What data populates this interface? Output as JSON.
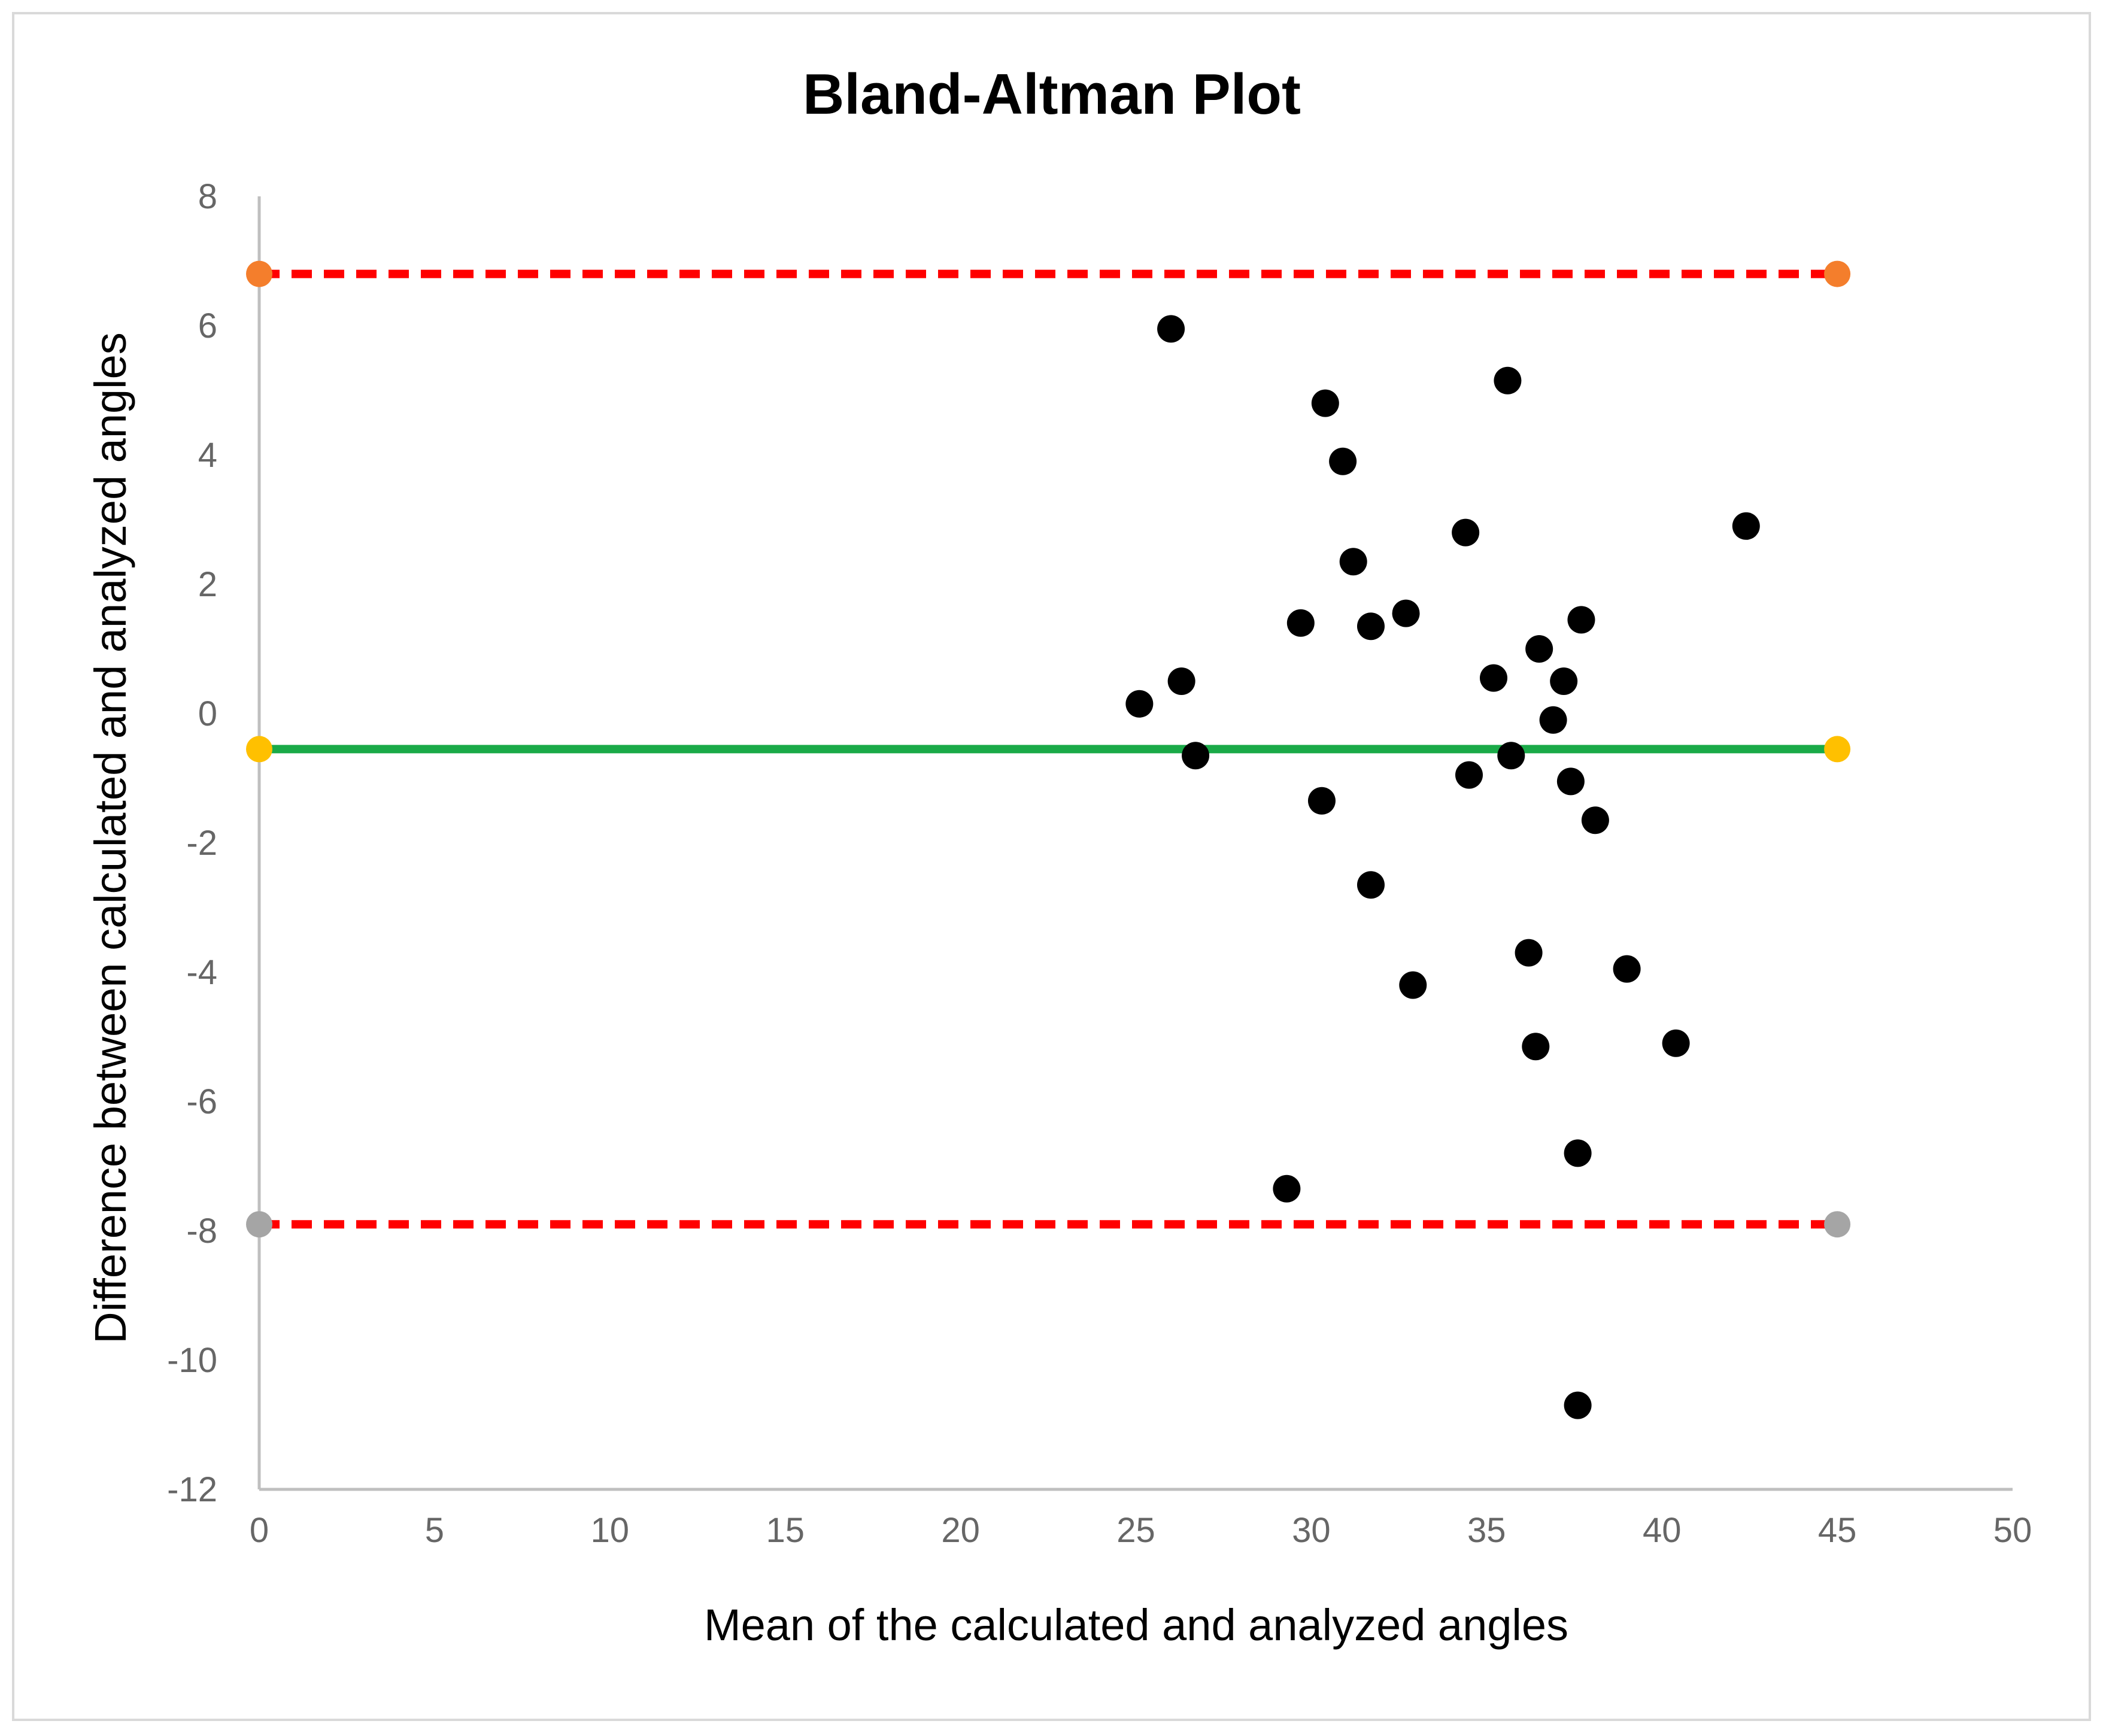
{
  "chart_data": {
    "type": "scatter",
    "title": "Bland-Altman Plot",
    "xlabel": "Mean of  the calculated and analyzed angles",
    "ylabel": "Difference between calculated and analyzed angles",
    "xlim": [
      0,
      50
    ],
    "ylim": [
      -12,
      8
    ],
    "x_ticks": [
      "0",
      "5",
      "10",
      "15",
      "20",
      "25",
      "30",
      "35",
      "40",
      "45",
      "50"
    ],
    "y_ticks": [
      "8",
      "6",
      "4",
      "2",
      "0",
      "-2",
      "-4",
      "-6",
      "-8",
      "-10",
      "-12"
    ],
    "grid": false,
    "legend": "none",
    "points": [
      {
        "x": 25.1,
        "y": 0.15
      },
      {
        "x": 26.0,
        "y": 5.95
      },
      {
        "x": 26.3,
        "y": 0.5
      },
      {
        "x": 26.7,
        "y": -0.65
      },
      {
        "x": 29.3,
        "y": -7.35
      },
      {
        "x": 29.7,
        "y": 1.4
      },
      {
        "x": 30.3,
        "y": -1.35
      },
      {
        "x": 30.4,
        "y": 4.8
      },
      {
        "x": 30.9,
        "y": 3.9
      },
      {
        "x": 31.2,
        "y": 2.35
      },
      {
        "x": 31.7,
        "y": 1.35
      },
      {
        "x": 31.7,
        "y": -2.65
      },
      {
        "x": 32.7,
        "y": 1.55
      },
      {
        "x": 32.9,
        "y": -4.2
      },
      {
        "x": 34.4,
        "y": 2.8
      },
      {
        "x": 34.5,
        "y": -0.95
      },
      {
        "x": 35.2,
        "y": 0.55
      },
      {
        "x": 35.6,
        "y": 5.15
      },
      {
        "x": 35.7,
        "y": -0.65
      },
      {
        "x": 36.2,
        "y": -3.7
      },
      {
        "x": 36.4,
        "y": -5.15
      },
      {
        "x": 36.5,
        "y": 1.0
      },
      {
        "x": 36.9,
        "y": -0.1
      },
      {
        "x": 37.2,
        "y": 0.5
      },
      {
        "x": 37.4,
        "y": -1.05
      },
      {
        "x": 37.6,
        "y": -6.8
      },
      {
        "x": 37.6,
        "y": -10.7
      },
      {
        "x": 37.7,
        "y": 1.45
      },
      {
        "x": 38.1,
        "y": -1.65
      },
      {
        "x": 39.0,
        "y": -3.95
      },
      {
        "x": 40.4,
        "y": -5.1
      },
      {
        "x": 42.4,
        "y": 2.9
      }
    ],
    "reference_lines": [
      {
        "label": "upper_limit",
        "y": 6.8,
        "x": [
          0,
          45
        ],
        "style": "dashed",
        "color": "#ff0000",
        "marker_color": "#f47e2c"
      },
      {
        "label": "mean_difference",
        "y": -0.55,
        "x": [
          0,
          45
        ],
        "style": "solid",
        "color": "#1aaa48",
        "marker_color": "#ffc000"
      },
      {
        "label": "lower_limit",
        "y": -7.9,
        "x": [
          0,
          45
        ],
        "style": "dashed",
        "color": "#ff0000",
        "marker_color": "#a5a5a5"
      }
    ],
    "point_color": "#000000",
    "axis_color": "#bfbfbf",
    "border_color": "#d9d9d9"
  }
}
